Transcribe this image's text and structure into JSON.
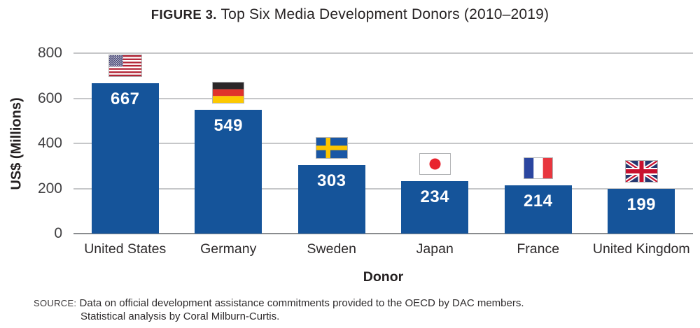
{
  "title": {
    "prefix": "FIGURE 3.",
    "text": "Top Six Media Development Donors (2010–2019)"
  },
  "y_axis": {
    "label": "US$ (Millions)",
    "ticks": [
      "800",
      "600",
      "400",
      "200",
      "0"
    ]
  },
  "x_axis": {
    "label": "Donor"
  },
  "source": {
    "label": "SOURCE:",
    "line1": "Data on official development assistance commitments provided to the OECD by DAC members.",
    "line2": "Statistical analysis by Coral Milburn-Curtis."
  },
  "chart_data": {
    "type": "bar",
    "title": "FIGURE 3. Top Six Media Development Donors (2010–2019)",
    "categories": [
      "United States",
      "Germany",
      "Sweden",
      "Japan",
      "France",
      "United Kingdom"
    ],
    "values": [
      667,
      549,
      303,
      234,
      214,
      199
    ],
    "flags": [
      "us-flag-icon",
      "germany-flag-icon",
      "sweden-flag-icon",
      "japan-flag-icon",
      "france-flag-icon",
      "uk-flag-icon"
    ],
    "xlabel": "Donor",
    "ylabel": "US$ (Millions)",
    "ylim": [
      0,
      800
    ],
    "yticks": [
      0,
      200,
      400,
      600,
      800
    ],
    "grid": true,
    "legend": "none",
    "bar_color": "#15549A",
    "gridline_color": "#C6C7C9",
    "axis_line_color": "#8A8C8F",
    "value_label_color": "#FFFFFF"
  }
}
